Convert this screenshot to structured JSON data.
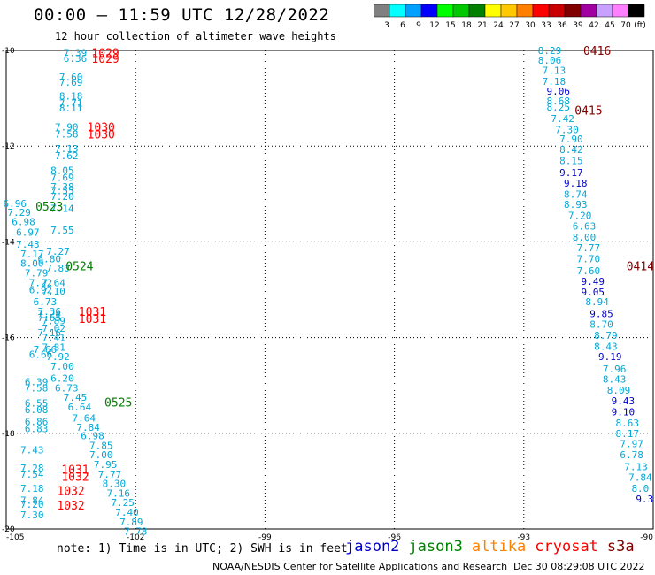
{
  "header": {
    "title": "00:00 – 11:59 UTC 12/28/2022",
    "subtitle": "12 hour collection of altimeter wave heights"
  },
  "colorbar": {
    "ticks": [
      "3",
      "6",
      "9",
      "12",
      "15",
      "18",
      "21",
      "24",
      "27",
      "30",
      "33",
      "36",
      "39",
      "42",
      "45",
      "70",
      "(ft)"
    ],
    "colors": [
      "#808080",
      "#00ffff",
      "#00a0ff",
      "#0000ff",
      "#00ff00",
      "#00c800",
      "#008000",
      "#ffff00",
      "#ffc800",
      "#ff8000",
      "#ff0000",
      "#c80000",
      "#800000",
      "#a000a0",
      "#c8a0ff",
      "#ff80ff",
      "#000000"
    ]
  },
  "map": {
    "lat_labels": [
      "-10",
      "-12",
      "-14",
      "-16",
      "-18",
      "-20"
    ],
    "lon_labels": [
      "-105",
      "-102",
      "-99",
      "-96",
      "-93",
      "-90"
    ],
    "lat_values": [
      -10,
      -12,
      -14,
      -16,
      -18,
      -20
    ],
    "lon_values": [
      -105,
      -102,
      -99,
      -96,
      -93,
      -90
    ]
  },
  "colors": {
    "jason2": "#0000cc",
    "jason3": "#008000",
    "altika": "#ff8000",
    "cryosat": "#ff0000",
    "s3a": "#800000",
    "cyan_values": "#00a8d8",
    "blue_values": "#0000cc"
  },
  "track_west": {
    "values": [
      {
        "v": "7.39",
        "lon": -103.4,
        "lat": -10.05
      },
      {
        "v": "6.36",
        "lon": -103.4,
        "lat": -10.17
      },
      {
        "v": "7.60",
        "lon": -103.5,
        "lat": -10.55
      },
      {
        "v": "7.69",
        "lon": -103.5,
        "lat": -10.67
      },
      {
        "v": "8.18",
        "lon": -103.5,
        "lat": -10.95
      },
      {
        "v": "7.71",
        "lon": -103.5,
        "lat": -11.1
      },
      {
        "v": "8.11",
        "lon": -103.5,
        "lat": -11.2
      },
      {
        "v": "7.90",
        "lon": -103.6,
        "lat": -11.6
      },
      {
        "v": "7.58",
        "lon": -103.6,
        "lat": -11.75
      },
      {
        "v": "7.13",
        "lon": -103.6,
        "lat": -12.05
      },
      {
        "v": "7.62",
        "lon": -103.6,
        "lat": -12.2
      },
      {
        "v": "8.05",
        "lon": -103.7,
        "lat": -12.5
      },
      {
        "v": "7.69",
        "lon": -103.7,
        "lat": -12.65
      },
      {
        "v": "7.38",
        "lon": -103.7,
        "lat": -12.85
      },
      {
        "v": "7.55",
        "lon": -103.7,
        "lat": -12.93
      },
      {
        "v": "7.20",
        "lon": -103.7,
        "lat": -13.05
      },
      {
        "v": "6.96",
        "lon": -104.8,
        "lat": -13.2
      },
      {
        "v": "7.14",
        "lon": -103.7,
        "lat": -13.3
      },
      {
        "v": "7.29",
        "lon": -104.7,
        "lat": -13.38
      },
      {
        "v": "6.98",
        "lon": -104.6,
        "lat": -13.58
      },
      {
        "v": "7.55",
        "lon": -103.7,
        "lat": -13.75
      },
      {
        "v": "6.97",
        "lon": -104.5,
        "lat": -13.8
      },
      {
        "v": "7.43",
        "lon": -104.5,
        "lat": -14.05
      },
      {
        "v": "7.17",
        "lon": -104.4,
        "lat": -14.25
      },
      {
        "v": "7.27",
        "lon": -103.8,
        "lat": -14.2
      },
      {
        "v": "8.00",
        "lon": -104.4,
        "lat": -14.45
      },
      {
        "v": "6.80",
        "lon": -104.0,
        "lat": -14.35
      },
      {
        "v": "7.80",
        "lon": -103.8,
        "lat": -14.55
      },
      {
        "v": "7.79",
        "lon": -104.3,
        "lat": -14.65
      },
      {
        "v": "7.22",
        "lon": -104.2,
        "lat": -14.85
      },
      {
        "v": "7.64",
        "lon": -103.9,
        "lat": -14.85
      },
      {
        "v": "6.92",
        "lon": -104.2,
        "lat": -15.0
      },
      {
        "v": "7.10",
        "lon": -103.9,
        "lat": -15.03
      },
      {
        "v": "6.73",
        "lon": -104.1,
        "lat": -15.25
      },
      {
        "v": "7.36",
        "lon": -104.0,
        "lat": -15.45
      },
      {
        "v": "7.24",
        "lon": -104.0,
        "lat": -15.5
      },
      {
        "v": "7.65",
        "lon": -104.0,
        "lat": -15.58
      },
      {
        "v": "7.89",
        "lon": -103.9,
        "lat": -15.65
      },
      {
        "v": "7.02",
        "lon": -103.9,
        "lat": -15.8
      },
      {
        "v": "7.16",
        "lon": -104.0,
        "lat": -15.9
      },
      {
        "v": "7.41",
        "lon": -103.9,
        "lat": -16.0
      },
      {
        "v": "7.81",
        "lon": -103.9,
        "lat": -16.2
      },
      {
        "v": "7.66",
        "lon": -104.1,
        "lat": -16.25
      },
      {
        "v": "6.66",
        "lon": -104.2,
        "lat": -16.35
      },
      {
        "v": "7.92",
        "lon": -103.8,
        "lat": -16.4
      },
      {
        "v": "7.00",
        "lon": -103.7,
        "lat": -16.6
      },
      {
        "v": "6.20",
        "lon": -103.7,
        "lat": -16.85
      },
      {
        "v": "6.39",
        "lon": -104.3,
        "lat": -16.92
      },
      {
        "v": "7.58",
        "lon": -104.3,
        "lat": -17.05
      },
      {
        "v": "6.73",
        "lon": -103.6,
        "lat": -17.05
      },
      {
        "v": "7.45",
        "lon": -103.4,
        "lat": -17.25
      },
      {
        "v": "6.55",
        "lon": -104.3,
        "lat": -17.37
      },
      {
        "v": "6.08",
        "lon": -104.3,
        "lat": -17.5
      },
      {
        "v": "6.64",
        "lon": -103.3,
        "lat": -17.45
      },
      {
        "v": "7.64",
        "lon": -103.2,
        "lat": -17.68
      },
      {
        "v": "6.86",
        "lon": -104.3,
        "lat": -17.75
      },
      {
        "v": "6.83",
        "lon": -104.3,
        "lat": -17.9
      },
      {
        "v": "7.84",
        "lon": -103.1,
        "lat": -17.87
      },
      {
        "v": "6.98",
        "lon": -103.0,
        "lat": -18.05
      },
      {
        "v": "7.85",
        "lon": -102.8,
        "lat": -18.25
      },
      {
        "v": "7.43",
        "lon": -104.4,
        "lat": -18.35
      },
      {
        "v": "7.00",
        "lon": -102.8,
        "lat": -18.45
      },
      {
        "v": "7.95",
        "lon": -102.7,
        "lat": -18.65
      },
      {
        "v": "7.28",
        "lon": -104.4,
        "lat": -18.72
      },
      {
        "v": "7.54",
        "lon": -104.4,
        "lat": -18.85
      },
      {
        "v": "7.77",
        "lon": -102.6,
        "lat": -18.85
      },
      {
        "v": "8.30",
        "lon": -102.5,
        "lat": -19.05
      },
      {
        "v": "7.18",
        "lon": -104.4,
        "lat": -19.15
      },
      {
        "v": "7.16",
        "lon": -102.4,
        "lat": -19.25
      },
      {
        "v": "7.84",
        "lon": -104.4,
        "lat": -19.4
      },
      {
        "v": "7.20",
        "lon": -104.4,
        "lat": -19.48
      },
      {
        "v": "7.25",
        "lon": -102.3,
        "lat": -19.45
      },
      {
        "v": "7.40",
        "lon": -102.2,
        "lat": -19.65
      },
      {
        "v": "7.30",
        "lon": -104.4,
        "lat": -19.7
      },
      {
        "v": "7.89",
        "lon": -102.1,
        "lat": -19.85
      },
      {
        "v": "7.78",
        "lon": -102.0,
        "lat": -20.05
      }
    ],
    "times": [
      {
        "t": "1029",
        "lon": -102.7,
        "lat": -10.05,
        "sat": "cryosat"
      },
      {
        "t": "1029",
        "lon": -102.7,
        "lat": -10.17,
        "sat": "cryosat"
      },
      {
        "t": "1030",
        "lon": -102.8,
        "lat": -11.6,
        "sat": "cryosat"
      },
      {
        "t": "1030",
        "lon": -102.8,
        "lat": -11.75,
        "sat": "cryosat"
      },
      {
        "t": "0523",
        "lon": -104.0,
        "lat": -13.25,
        "sat": "jason3"
      },
      {
        "t": "0524",
        "lon": -103.3,
        "lat": -14.5,
        "sat": "jason3"
      },
      {
        "t": "1031",
        "lon": -103.0,
        "lat": -15.45,
        "sat": "cryosat"
      },
      {
        "t": "1031",
        "lon": -103.0,
        "lat": -15.6,
        "sat": "cryosat"
      },
      {
        "t": "0525",
        "lon": -102.4,
        "lat": -17.35,
        "sat": "jason3"
      },
      {
        "t": "1031",
        "lon": -103.4,
        "lat": -18.75,
        "sat": "cryosat"
      },
      {
        "t": "1032",
        "lon": -103.4,
        "lat": -18.9,
        "sat": "cryosat"
      },
      {
        "t": "1032",
        "lon": -103.5,
        "lat": -19.2,
        "sat": "cryosat"
      },
      {
        "t": "1032",
        "lon": -103.5,
        "lat": -19.5,
        "sat": "cryosat"
      }
    ]
  },
  "track_east": {
    "values": [
      {
        "v": "8.29",
        "lon": -92.4,
        "lat": -10.0,
        "c": "cyan"
      },
      {
        "v": "8.06",
        "lon": -92.4,
        "lat": -10.2,
        "c": "cyan"
      },
      {
        "v": "7.13",
        "lon": -92.3,
        "lat": -10.42,
        "c": "cyan"
      },
      {
        "v": "7.18",
        "lon": -92.3,
        "lat": -10.65,
        "c": "cyan"
      },
      {
        "v": "9.06",
        "lon": -92.2,
        "lat": -10.85,
        "c": "blue"
      },
      {
        "v": "8.68",
        "lon": -92.2,
        "lat": -11.05,
        "c": "cyan"
      },
      {
        "v": "8.25",
        "lon": -92.2,
        "lat": -11.18,
        "c": "cyan"
      },
      {
        "v": "7.42",
        "lon": -92.1,
        "lat": -11.42,
        "c": "cyan"
      },
      {
        "v": "7.30",
        "lon": -92.0,
        "lat": -11.65,
        "c": "cyan"
      },
      {
        "v": "7.90",
        "lon": -91.9,
        "lat": -11.85,
        "c": "cyan"
      },
      {
        "v": "8.42",
        "lon": -91.9,
        "lat": -12.07,
        "c": "cyan"
      },
      {
        "v": "8.15",
        "lon": -91.9,
        "lat": -12.3,
        "c": "cyan"
      },
      {
        "v": "9.17",
        "lon": -91.9,
        "lat": -12.55,
        "c": "blue"
      },
      {
        "v": "9.18",
        "lon": -91.8,
        "lat": -12.77,
        "c": "blue"
      },
      {
        "v": "8.74",
        "lon": -91.8,
        "lat": -13.0,
        "c": "cyan"
      },
      {
        "v": "8.93",
        "lon": -91.8,
        "lat": -13.22,
        "c": "cyan"
      },
      {
        "v": "7.20",
        "lon": -91.7,
        "lat": -13.45,
        "c": "cyan"
      },
      {
        "v": "6.63",
        "lon": -91.6,
        "lat": -13.67,
        "c": "cyan"
      },
      {
        "v": "8.00",
        "lon": -91.6,
        "lat": -13.9,
        "c": "cyan"
      },
      {
        "v": "7.77",
        "lon": -91.5,
        "lat": -14.12,
        "c": "cyan"
      },
      {
        "v": "7.70",
        "lon": -91.5,
        "lat": -14.35,
        "c": "cyan"
      },
      {
        "v": "7.60",
        "lon": -91.5,
        "lat": -14.6,
        "c": "cyan"
      },
      {
        "v": "9.49",
        "lon": -91.4,
        "lat": -14.82,
        "c": "blue"
      },
      {
        "v": "9.05",
        "lon": -91.4,
        "lat": -15.05,
        "c": "blue"
      },
      {
        "v": "8.94",
        "lon": -91.3,
        "lat": -15.25,
        "c": "cyan"
      },
      {
        "v": "9.85",
        "lon": -91.2,
        "lat": -15.5,
        "c": "blue"
      },
      {
        "v": "8.70",
        "lon": -91.2,
        "lat": -15.72,
        "c": "cyan"
      },
      {
        "v": "8.79",
        "lon": -91.1,
        "lat": -15.95,
        "c": "cyan"
      },
      {
        "v": "8.43",
        "lon": -91.1,
        "lat": -16.18,
        "c": "cyan"
      },
      {
        "v": "9.19",
        "lon": -91.0,
        "lat": -16.4,
        "c": "blue"
      },
      {
        "v": "7.96",
        "lon": -90.9,
        "lat": -16.65,
        "c": "cyan"
      },
      {
        "v": "8.43",
        "lon": -90.9,
        "lat": -16.87,
        "c": "cyan"
      },
      {
        "v": "8.09",
        "lon": -90.8,
        "lat": -17.1,
        "c": "cyan"
      },
      {
        "v": "9.43",
        "lon": -90.7,
        "lat": -17.32,
        "c": "blue"
      },
      {
        "v": "9.10",
        "lon": -90.7,
        "lat": -17.55,
        "c": "blue"
      },
      {
        "v": "8.63",
        "lon": -90.6,
        "lat": -17.78,
        "c": "cyan"
      },
      {
        "v": "8.17",
        "lon": -90.6,
        "lat": -18.0,
        "c": "cyan"
      },
      {
        "v": "7.97",
        "lon": -90.5,
        "lat": -18.22,
        "c": "cyan"
      },
      {
        "v": "6.78",
        "lon": -90.5,
        "lat": -18.45,
        "c": "cyan"
      },
      {
        "v": "7.13",
        "lon": -90.4,
        "lat": -18.7,
        "c": "cyan"
      },
      {
        "v": "7.84",
        "lon": -90.3,
        "lat": -18.92,
        "c": "cyan"
      },
      {
        "v": "8.0",
        "lon": -90.3,
        "lat": -19.15,
        "c": "cyan"
      },
      {
        "v": "9.3",
        "lon": -90.2,
        "lat": -19.37,
        "c": "blue"
      }
    ],
    "times": [
      {
        "t": "0416",
        "lon": -91.3,
        "lat": -10.0,
        "sat": "s3a"
      },
      {
        "t": "0415",
        "lon": -91.5,
        "lat": -11.25,
        "sat": "s3a"
      },
      {
        "t": "0414",
        "lon": -90.3,
        "lat": -14.5,
        "sat": "s3a"
      }
    ]
  },
  "footer": {
    "note": "note: 1) Time is in UTC; 2) SWH is in feet",
    "legend": [
      {
        "label": "jason2",
        "color": "#0000cc"
      },
      {
        "label": "jason3",
        "color": "#008000"
      },
      {
        "label": "altika",
        "color": "#ff8000"
      },
      {
        "label": "cryosat",
        "color": "#ff0000"
      },
      {
        "label": "s3a",
        "color": "#800000"
      }
    ],
    "credit": "NOAA/NESDIS Center for Satellite Applications and Research",
    "timestamp": "Dec 30 08:29:08 UTC 2022"
  }
}
